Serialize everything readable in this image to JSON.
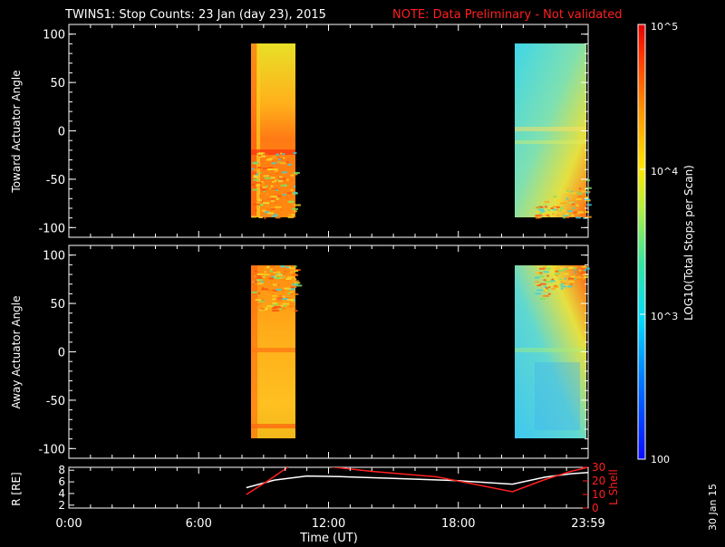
{
  "header": {
    "title": "TWINS1: Stop Counts: 23 Jan (day  23), 2015",
    "note": "NOTE: Data Preliminary - Not validated"
  },
  "panels": {
    "toward": {
      "ylabel": "Toward Actuator Angle"
    },
    "away": {
      "ylabel": "Away Actuator Angle"
    },
    "position": {
      "ylabel_left": "R [RE]",
      "ylabel_right": "L Shell"
    }
  },
  "colorbar": {
    "label": "LOG10(Total Stops per Scan)",
    "ticks": [
      "100",
      "10^3",
      "10^4",
      "10^5"
    ],
    "tick_values": [
      100,
      1000,
      10000,
      100000
    ]
  },
  "xaxis": {
    "label": "Time (UT)",
    "ticks": [
      "0:00",
      "6:00",
      "12:00",
      "18:00",
      "23:59"
    ]
  },
  "footer": {
    "date_stamp": "30 Jan 15"
  },
  "chart_data": [
    {
      "type": "heatmap",
      "title": "Toward Actuator Angle",
      "ylabel": "Toward Actuator Angle",
      "xlabel": "Time (UT)",
      "xlim": [
        0,
        24
      ],
      "ylim": [
        -110,
        110
      ],
      "yticks": [
        -100,
        -50,
        0,
        50,
        100
      ],
      "zscale": "log10",
      "zlim": [
        100,
        100000
      ],
      "blocks": [
        {
          "t_start": 8.2,
          "t_end": 10.4,
          "angle_range": [
            -90,
            90
          ],
          "dominant": "orange-yellow (~3e4-6e4)",
          "noisy_angles": [
            -90,
            -20
          ]
        },
        {
          "t_start": 20.5,
          "t_end": 24.0,
          "angle_range": [
            -90,
            90
          ],
          "dominant": "cyan-green (~3e3-1e4)",
          "hot_corner": "bottom-right (~5e4)"
        }
      ]
    },
    {
      "type": "heatmap",
      "title": "Away Actuator Angle",
      "ylabel": "Away Actuator Angle",
      "xlabel": "Time (UT)",
      "xlim": [
        0,
        24
      ],
      "ylim": [
        -110,
        110
      ],
      "yticks": [
        -100,
        -50,
        0,
        50,
        100
      ],
      "zscale": "log10",
      "zlim": [
        100,
        100000
      ],
      "blocks": [
        {
          "t_start": 8.2,
          "t_end": 10.4,
          "angle_range": [
            -90,
            90
          ],
          "dominant": "orange-yellow (~3e4-6e4)",
          "noisy_angles": [
            50,
            90
          ]
        },
        {
          "t_start": 20.5,
          "t_end": 24.0,
          "angle_range": [
            -90,
            90
          ],
          "dominant": "cyan-green (~3e3-1e4)",
          "hot_corner": "top-right (~5e4)"
        }
      ]
    },
    {
      "type": "line",
      "xlabel": "Time (UT)",
      "xlim": [
        0,
        24
      ],
      "ylabel": "R [RE]",
      "ylim": [
        1.5,
        8.5
      ],
      "yticks": [
        2,
        4,
        6,
        8
      ],
      "ylabel_right": "L Shell",
      "ylim_right": [
        0,
        30
      ],
      "yticks_right": [
        0,
        10,
        20,
        30
      ],
      "series": [
        {
          "name": "R",
          "color": "#ffffff",
          "axis": "left",
          "x": [
            8.2,
            9.5,
            11.0,
            12.5,
            15.0,
            18.0,
            20.5,
            22.0,
            23.2,
            24.0
          ],
          "y": [
            5.0,
            6.3,
            7.0,
            6.9,
            6.6,
            6.2,
            5.6,
            6.8,
            7.4,
            7.6
          ]
        },
        {
          "name": "L Shell",
          "color": "#ff2020",
          "axis": "right",
          "x": [
            8.2,
            9.2,
            10.2,
            11.2,
            14.0,
            17.0,
            20.5,
            22.0,
            23.2,
            24.0
          ],
          "y": [
            10,
            20,
            31,
            32,
            27,
            23,
            12,
            21,
            27,
            30
          ]
        }
      ]
    }
  ]
}
